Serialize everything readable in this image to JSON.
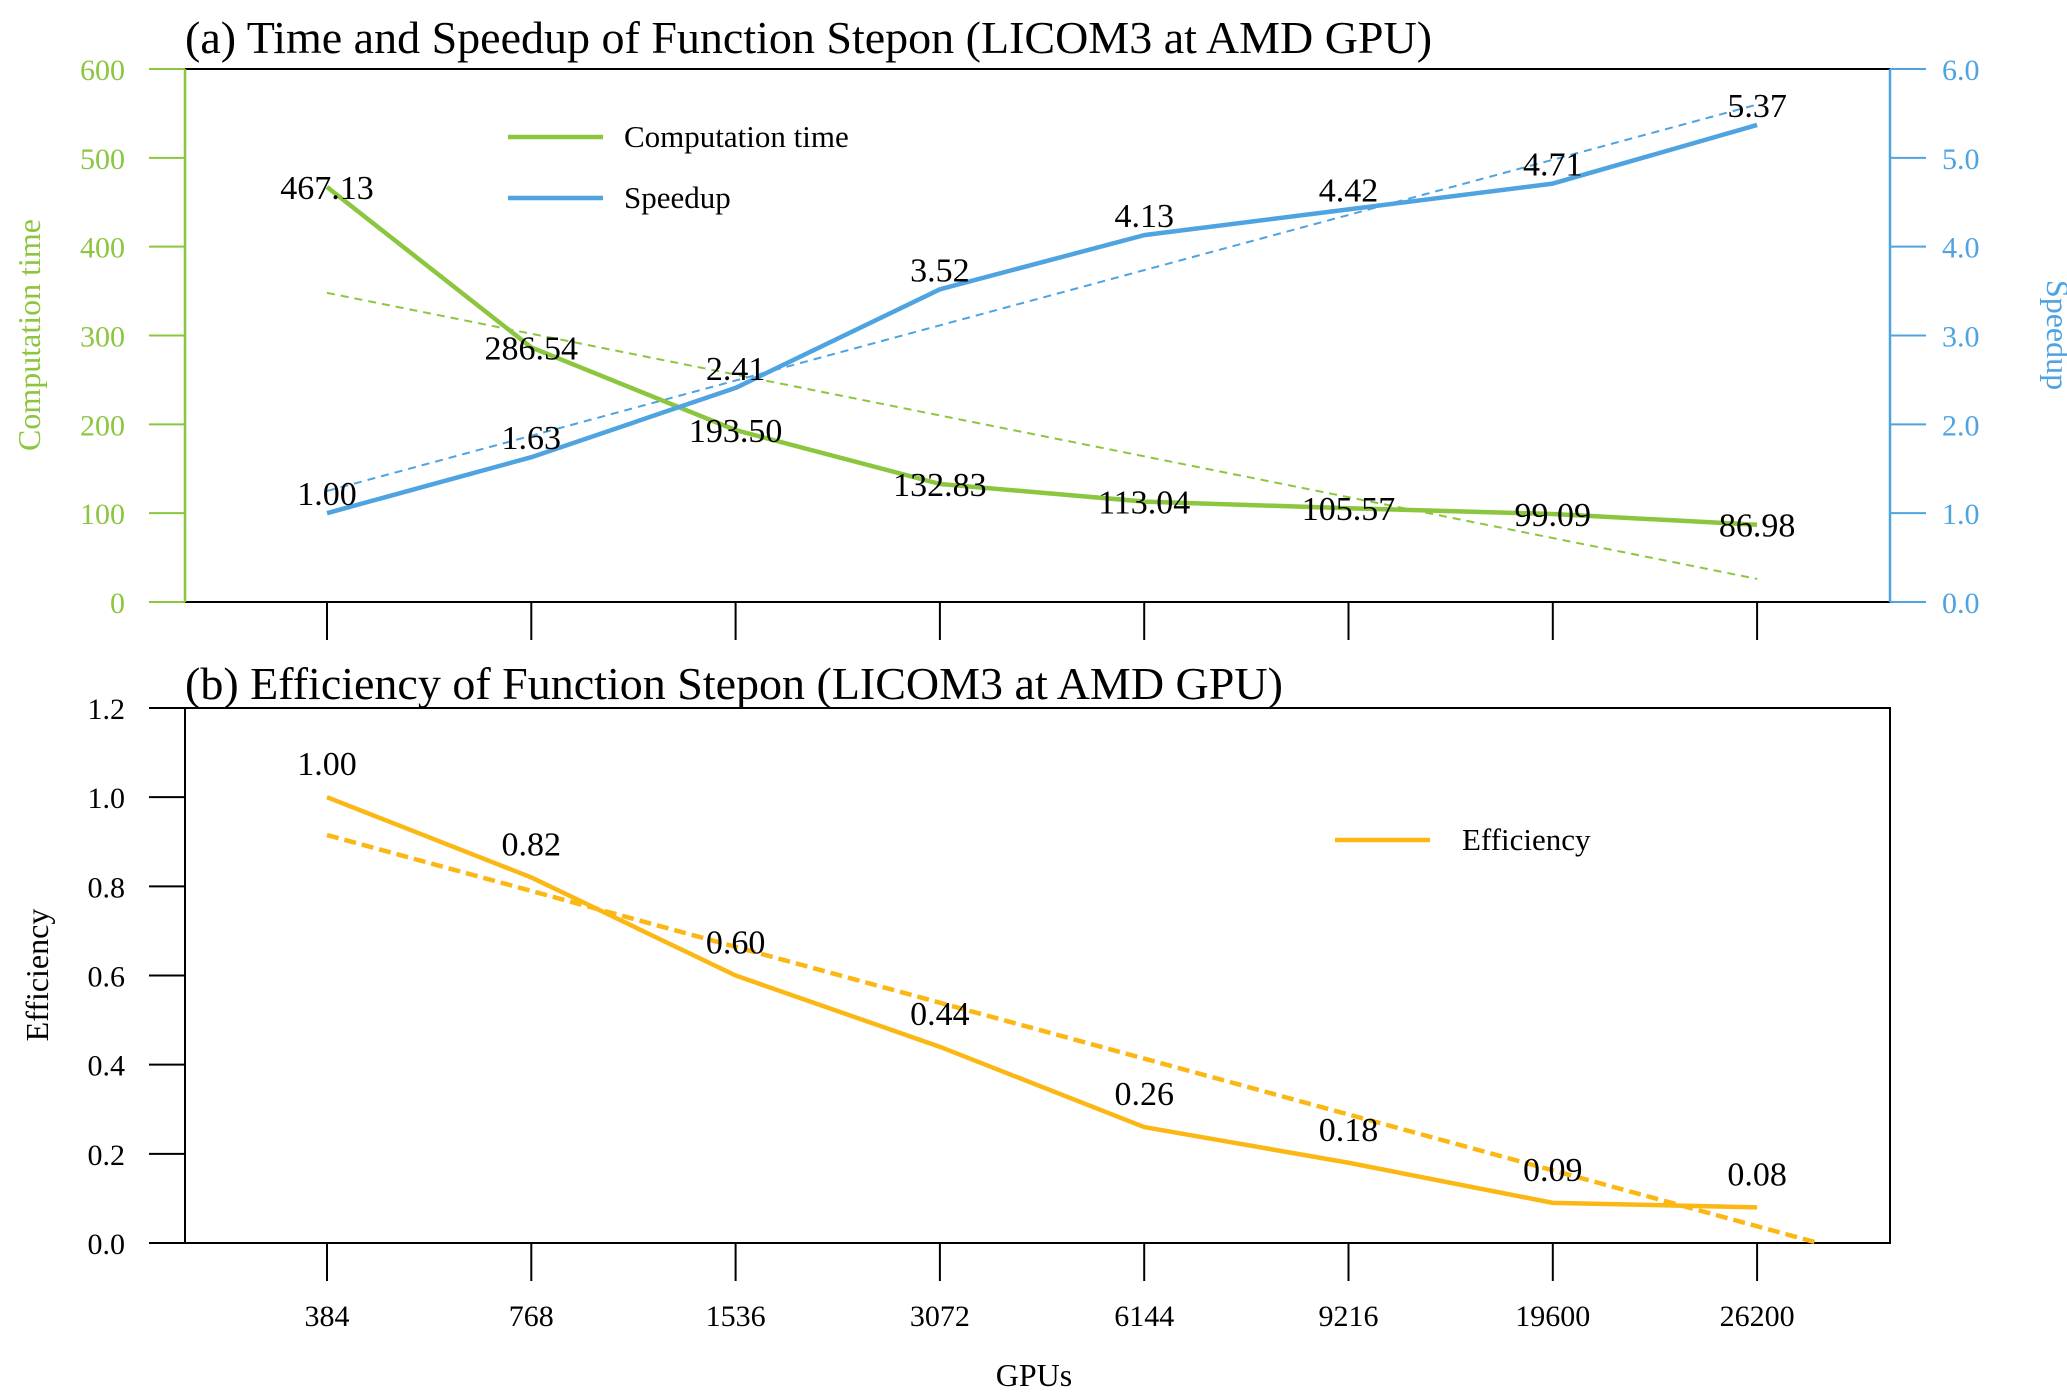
{
  "chart_data": [
    {
      "type": "line",
      "title": "(a) Time and Speedup of Function Stepon (LICOM3 at AMD GPU)",
      "categories": [
        "384",
        "768",
        "1536",
        "3072",
        "6144",
        "9216",
        "19600",
        "26200"
      ],
      "ylabel_left": "Computation time",
      "ylabel_right": "Speedup",
      "ylim_left": [
        0,
        600
      ],
      "ylim_right": [
        0,
        6
      ],
      "yticks_left": [
        "0",
        "100",
        "200",
        "300",
        "400",
        "500",
        "600"
      ],
      "yticks_right": [
        "0.0",
        "1.0",
        "2.0",
        "3.0",
        "4.0",
        "5.0",
        "6.0"
      ],
      "series": [
        {
          "name": "Computation time",
          "axis": "left",
          "color": "#8cc63f",
          "values": [
            467.13,
            286.54,
            193.5,
            132.83,
            113.04,
            105.57,
            99.09,
            86.98
          ],
          "labels": [
            "467.13",
            "286.54",
            "193.50",
            "132.83",
            "113.04",
            "105.57",
            "99.09",
            "86.98"
          ],
          "trend": [
            348,
            26
          ]
        },
        {
          "name": "Speedup",
          "axis": "right",
          "color": "#4ea3e0",
          "values": [
            1.0,
            1.63,
            2.41,
            3.52,
            4.13,
            4.42,
            4.71,
            5.37
          ],
          "labels": [
            "1.00",
            "1.63",
            "2.41",
            "3.52",
            "4.13",
            "4.42",
            "4.71",
            "5.37"
          ],
          "trend": [
            1.25,
            5.6
          ]
        }
      ],
      "legend": [
        "Computation time",
        "Speedup"
      ]
    },
    {
      "type": "line",
      "title": "(b) Efficiency of Function Stepon (LICOM3 at AMD GPU)",
      "categories": [
        "384",
        "768",
        "1536",
        "3072",
        "6144",
        "9216",
        "19600",
        "26200"
      ],
      "xlabel": "GPUs",
      "ylabel": "Efficiency",
      "ylim": [
        0,
        1.2
      ],
      "yticks": [
        "0.0",
        "0.2",
        "0.4",
        "0.6",
        "0.8",
        "1.0",
        "1.2"
      ],
      "series": [
        {
          "name": "Efficiency",
          "color": "#fbb714",
          "values": [
            1.0,
            0.82,
            0.6,
            0.44,
            0.26,
            0.18,
            0.09,
            0.08
          ],
          "labels": [
            "1.00",
            "0.82",
            "0.60",
            "0.44",
            "0.26",
            "0.18",
            "0.09",
            "0.08"
          ],
          "trend": [
            0.915,
            0.0,
            7.3
          ]
        }
      ],
      "legend": [
        "Efficiency"
      ]
    }
  ]
}
